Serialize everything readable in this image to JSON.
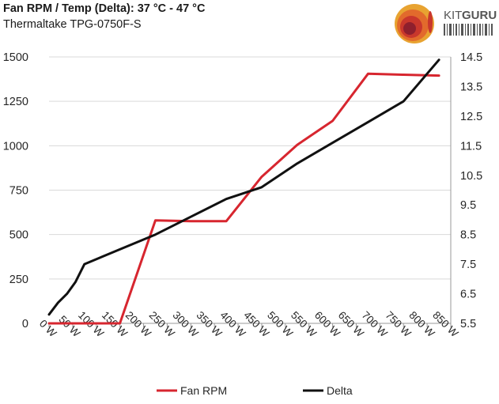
{
  "title": "Fan RPM / Temp (Delta): 37 °C - 47 °C",
  "subtitle": "Thermaltake TPG-0750F-S",
  "logo": {
    "text_kit": "KIT",
    "text_guru": "GURU"
  },
  "colors": {
    "fan": "#d7262f",
    "delta": "#111111",
    "grid": "#d9d9d9",
    "axis": "#999999"
  },
  "chart_data": {
    "type": "line",
    "x_tick_labels": [
      "0 W",
      "50 W",
      "100 W",
      "150 W",
      "200 W",
      "250 W",
      "300 W",
      "350 W",
      "400 W",
      "450 W",
      "500 W",
      "550 W",
      "600 W",
      "650 W",
      "700 W",
      "750 W",
      "800 W",
      "850 W"
    ],
    "xlim": [
      0,
      850
    ],
    "ylim_left": [
      0,
      1500
    ],
    "yticks_left": [
      "0",
      "250",
      "500",
      "750",
      "1000",
      "1250",
      "1500"
    ],
    "ylim_right": [
      5.5,
      14.5
    ],
    "yticks_right": [
      "5.5",
      "6.5",
      "7.5",
      "8.5",
      "9.5",
      "10.5",
      "11.5",
      "12.5",
      "13.5",
      "14.5"
    ],
    "legend_position": "bottom",
    "series": [
      {
        "name": "Fan RPM",
        "axis": "left",
        "x": [
          0,
          75,
          150,
          225,
          300,
          375,
          450,
          525,
          600,
          675,
          750,
          825
        ],
        "values": [
          0,
          0,
          0,
          580,
          575,
          575,
          825,
          1005,
          1140,
          1405,
          1400,
          1395
        ]
      },
      {
        "name": "Delta",
        "axis": "right",
        "x": [
          0,
          19,
          38,
          56,
          75,
          150,
          225,
          300,
          375,
          450,
          525,
          600,
          675,
          750,
          825
        ],
        "values": [
          5.8,
          6.2,
          6.5,
          6.9,
          7.5,
          8.0,
          8.5,
          9.1,
          9.7,
          10.1,
          10.9,
          11.6,
          12.3,
          13.0,
          14.4
        ]
      }
    ]
  }
}
